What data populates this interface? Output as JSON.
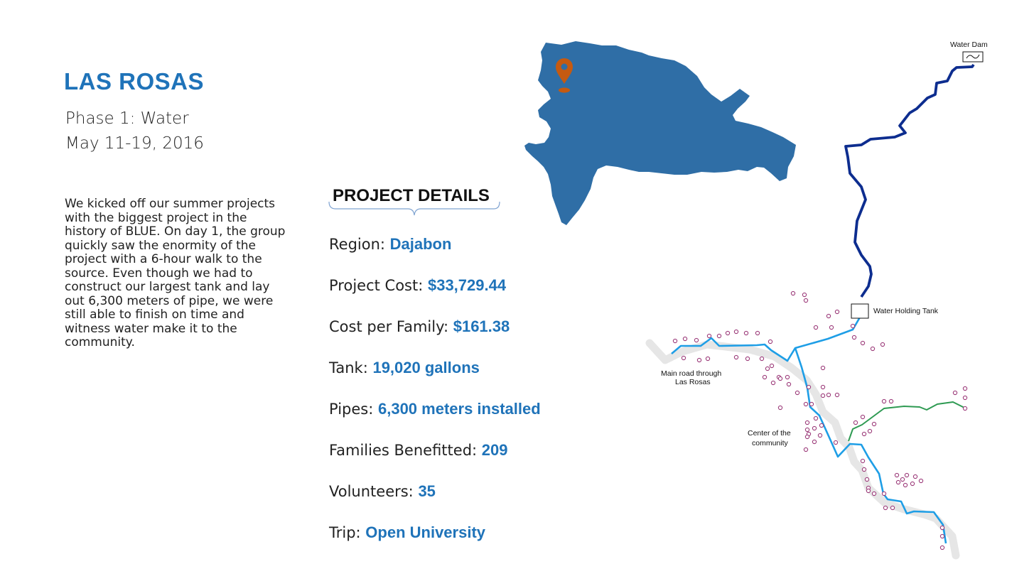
{
  "header": {
    "title": "LAS ROSAS",
    "phase": "Phase 1: Water",
    "dates": "May 11-19, 2016"
  },
  "description": "We kicked off our summer projects with the biggest project in the history of BLUE. On day 1, the group quickly saw the enormity of the project with a 6-hour walk to the source. Even though we had to construct our largest tank and lay out 6,300 meters of pipe, we were still able to finish on time and witness water make it to the community.",
  "details": {
    "heading": "PROJECT DETAILS",
    "items": [
      {
        "label": "Region: ",
        "value": "Dajabon"
      },
      {
        "label": "Project Cost: ",
        "value": "$33,729.44"
      },
      {
        "label": "Cost per Family: ",
        "value": "$161.38"
      },
      {
        "label": "Tank: ",
        "value": "19,020 gallons"
      },
      {
        "label": "Pipes: ",
        "value": "6,300 meters installed"
      },
      {
        "label": "Families Benefitted: ",
        "value": "209"
      },
      {
        "label": "Volunteers: ",
        "value": "35"
      },
      {
        "label": "Trip: ",
        "value": "Open University"
      }
    ]
  },
  "map": {
    "labels": {
      "dam": "Water Dam",
      "tank": "Water Holding Tank",
      "road_1": "Main road through",
      "road_2": "Las Rosas",
      "center_1": "Center of the",
      "center_2": "community"
    },
    "pin_icon": "location-pin-icon",
    "colors": {
      "island": "#2f6ea6",
      "pin": "#c55a11",
      "main_pipe": "#0d2d8f",
      "distribution_pipe": "#1e9ee6",
      "branch_pipe": "#2e9a52",
      "road": "#e6e6e6",
      "house": "#9c3b7a"
    }
  }
}
